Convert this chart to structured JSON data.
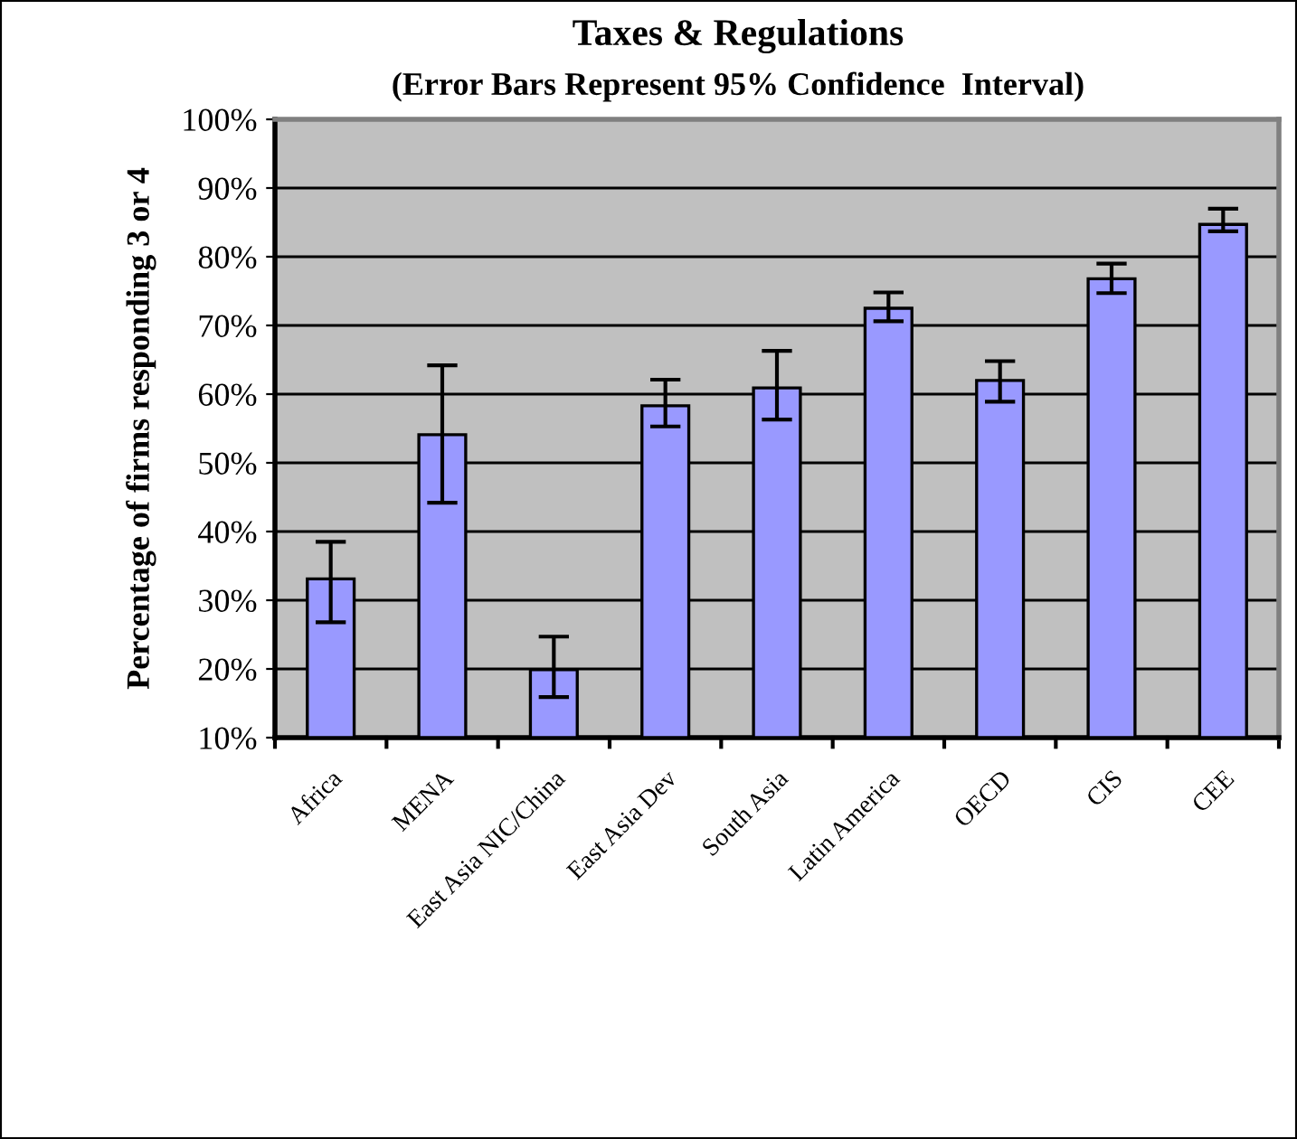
{
  "chart_data": {
    "type": "bar",
    "title": "Taxes & Regulations",
    "subtitle": "(Error Bars Represent 95% Confidence  Interval)",
    "ylabel": "Percentage of firms responding 3 or 4",
    "categories": [
      "Africa",
      "MENA",
      "East Asia NIC/China",
      "East Asia Dev",
      "South Asia",
      "Latin America",
      "OECD",
      "CIS",
      "CEE"
    ],
    "values": [
      33.1,
      54.1,
      19.9,
      58.3,
      60.9,
      72.5,
      62.0,
      76.8,
      84.7
    ],
    "errors": [
      [
        26.8,
        38.5
      ],
      [
        44.2,
        64.2
      ],
      [
        15.9,
        24.7
      ],
      [
        55.3,
        62.1
      ],
      [
        56.3,
        66.3
      ],
      [
        70.6,
        74.8
      ],
      [
        58.9,
        64.8
      ],
      [
        74.7,
        79.0
      ],
      [
        83.7,
        87.0
      ]
    ],
    "color": "#9999ff",
    "ylim": [
      10,
      100
    ],
    "yticks": [
      {
        "value": 10,
        "label": "10%"
      },
      {
        "value": 20,
        "label": "20%"
      },
      {
        "value": 30,
        "label": "30%"
      },
      {
        "value": 40,
        "label": "40%"
      },
      {
        "value": 50,
        "label": "50%"
      },
      {
        "value": 60,
        "label": "60%"
      },
      {
        "value": 70,
        "label": "70%"
      },
      {
        "value": 80,
        "label": "80%"
      },
      {
        "value": 90,
        "label": "90%"
      },
      {
        "value": 100,
        "label": "100%"
      }
    ],
    "grid": "y",
    "legend": false
  }
}
